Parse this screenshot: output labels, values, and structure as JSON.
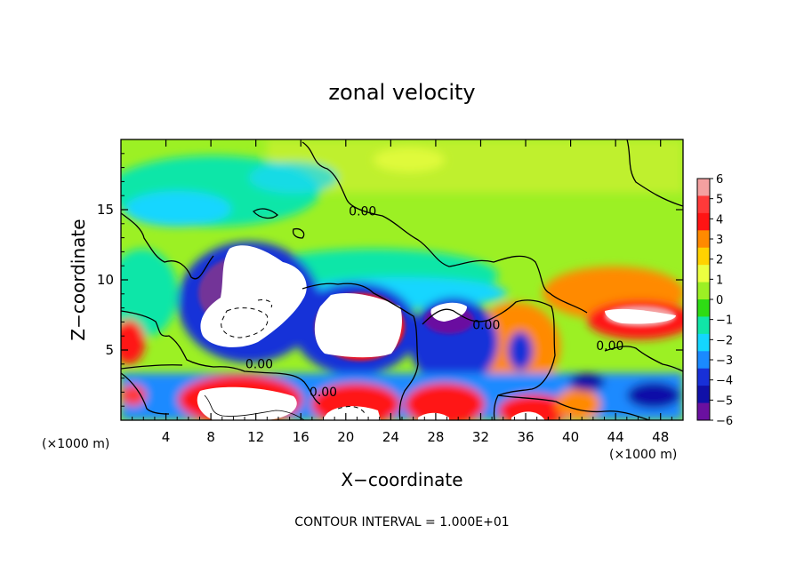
{
  "chart_data": {
    "type": "heatmap",
    "title": "zonal velocity",
    "xlabel": "X−coordinate",
    "ylabel": "Z−coordinate",
    "x_unit_left": "(×1000 m)",
    "x_unit_right": "(×1000 m)",
    "xlim": [
      0,
      50
    ],
    "ylim": [
      0,
      20
    ],
    "xticks": [
      4,
      8,
      12,
      16,
      20,
      24,
      28,
      32,
      36,
      40,
      44,
      48
    ],
    "yticks": [
      5,
      10,
      15
    ],
    "colorbar": {
      "min": -6,
      "max": 6,
      "ticks": [
        "6",
        "5",
        "4",
        "3",
        "2",
        "1",
        "0",
        "−1",
        "−2",
        "−3",
        "−4",
        "−5",
        "−6"
      ],
      "colors": [
        "#f4a0a0",
        "#ff3a3a",
        "#ff1414",
        "#ff8a00",
        "#ffd200",
        "#ecff40",
        "#9cf024",
        "#2edc14",
        "#10e6a8",
        "#14d6ff",
        "#1a8aff",
        "#1830d8",
        "#1010a8",
        "#6a10a0"
      ]
    },
    "contour_labels": [
      {
        "text": "0.00",
        "x": 21.5,
        "y": 14.6
      },
      {
        "text": "0.00",
        "x": 32.5,
        "y": 6.5
      },
      {
        "text": "0.00",
        "x": 43.5,
        "y": 5.0
      },
      {
        "text": "0.00",
        "x": 12.3,
        "y": 3.7
      },
      {
        "text": "0.00",
        "x": 18.0,
        "y": 1.7
      }
    ],
    "note": "CONTOUR INTERVAL = 1.000E+01"
  }
}
